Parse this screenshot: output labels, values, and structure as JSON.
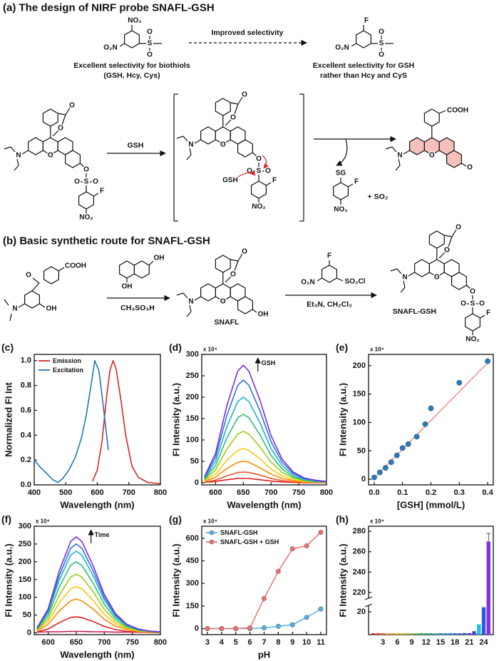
{
  "scheme_a": {
    "title": "(a) The design of NIRF probe SNAFL-GSH",
    "arrow_label": "Improved selectivity",
    "left_caption": [
      "Excellent selectivity for biothiols",
      "(GSH, Hcy, Cys)"
    ],
    "right_caption": [
      "Excellent selectivity for GSH",
      "rather than Hcy and CyS"
    ],
    "reagent": "GSH",
    "nucleophile": "GSH",
    "byproduct": "+ SO₂",
    "atoms": [
      "NO₂",
      "O₂N",
      "S",
      "O",
      "O",
      "F",
      "O₂N",
      "S",
      "O",
      "O",
      "O",
      "O",
      "N",
      "O",
      "O",
      "S",
      "O",
      "O",
      "F",
      "NO₂",
      "O",
      "O",
      "N",
      "O",
      "O",
      "S",
      "O",
      "O",
      "F",
      "NO₂",
      "SG",
      "F",
      "NO₂",
      "COOH",
      "N",
      "O",
      "O"
    ]
  },
  "scheme_b": {
    "title": "(b) Basic synthetic route for SNAFL-GSH",
    "reagents": [
      "CH₃SO₃H",
      "Et₃N, CH₂Cl₂"
    ],
    "names": [
      "SNAFL",
      "SNAFL-GSH"
    ],
    "atoms": [
      "COOH",
      "O",
      "N",
      "OH",
      "OH",
      "OH",
      "O",
      "O",
      "N",
      "O",
      "OH",
      "O₂N",
      "F",
      "SO₂Cl",
      "O",
      "O",
      "N",
      "O",
      "O",
      "S",
      "O",
      "O",
      "F",
      "NO₂"
    ]
  },
  "chart_data": [
    {
      "type": "line",
      "title": "(c)",
      "xlabel": "Wavelength (nm)",
      "ylabel": "Normalized FI Int",
      "xlim": [
        400,
        800
      ],
      "xticks": [
        400,
        500,
        600,
        700,
        800
      ],
      "ylim": [
        0,
        1.05
      ],
      "yticks": [
        {
          "value": 0,
          "label": "0.0"
        },
        0.2,
        0.4,
        0.6,
        0.8,
        {
          "value": 1,
          "label": "1.0"
        }
      ],
      "legend": "upper left",
      "series": [
        {
          "name": "Emission",
          "color": "#d62728",
          "x": [
            585,
            600,
            615,
            630,
            640,
            650,
            660,
            675,
            690,
            710,
            730,
            760,
            800
          ],
          "values": [
            0.03,
            0.12,
            0.35,
            0.72,
            0.92,
            1.0,
            0.93,
            0.68,
            0.4,
            0.15,
            0.06,
            0.02,
            0.01
          ]
        },
        {
          "name": "Excitation",
          "color": "#1f77b4",
          "x": [
            400,
            420,
            440,
            460,
            475,
            490,
            510,
            530,
            550,
            565,
            580,
            592,
            605,
            615,
            625,
            635
          ],
          "values": [
            0.2,
            0.14,
            0.09,
            0.04,
            0.02,
            0.05,
            0.12,
            0.22,
            0.38,
            0.56,
            0.8,
            1.0,
            0.92,
            0.72,
            0.5,
            0.28
          ]
        }
      ]
    },
    {
      "type": "line",
      "title": "(d)",
      "y_multiplier": "x 10⁴",
      "annotation": "GSH",
      "xlabel": "Wavelength (nm)",
      "ylabel": "FI Intensity (a.u.)",
      "xlim": [
        575,
        800
      ],
      "xticks": [
        600,
        650,
        700,
        750,
        800
      ],
      "ylim": [
        -5,
        300
      ],
      "yticks": [
        0,
        50,
        100,
        150,
        200,
        250,
        300
      ],
      "x": [
        580,
        600,
        620,
        640,
        650,
        660,
        680,
        700,
        720,
        740,
        760,
        780,
        800
      ],
      "series": [
        {
          "color": "#e41a1c",
          "values": [
            1,
            3,
            7,
            10,
            10,
            10,
            7,
            4,
            2,
            1,
            0,
            0,
            0
          ]
        },
        {
          "color": "#f4511e",
          "values": [
            1,
            6,
            16,
            24,
            25,
            24,
            18,
            10,
            5,
            2,
            1,
            1,
            0
          ]
        },
        {
          "color": "#fb8c00",
          "values": [
            3,
            13,
            33,
            48,
            50,
            48,
            35,
            20,
            10,
            5,
            2,
            1,
            1
          ]
        },
        {
          "color": "#f9c80e",
          "values": [
            4,
            20,
            52,
            76,
            80,
            76,
            56,
            32,
            16,
            7,
            3,
            2,
            1
          ]
        },
        {
          "color": "#9ccc15",
          "values": [
            6,
            30,
            78,
            114,
            120,
            114,
            84,
            48,
            24,
            11,
            5,
            2,
            1
          ]
        },
        {
          "color": "#2fbf71",
          "values": [
            8,
            40,
            104,
            152,
            160,
            152,
            112,
            64,
            32,
            14,
            6,
            3,
            2
          ]
        },
        {
          "color": "#19b5c9",
          "values": [
            10,
            50,
            130,
            190,
            200,
            190,
            140,
            80,
            40,
            18,
            8,
            4,
            2
          ]
        },
        {
          "color": "#2f6fe4",
          "values": [
            12,
            60,
            156,
            228,
            240,
            228,
            168,
            96,
            48,
            22,
            10,
            5,
            2
          ]
        },
        {
          "color": "#7b2ee0",
          "values": [
            14,
            69,
            179,
            261,
            275,
            261,
            193,
            110,
            55,
            25,
            11,
            6,
            3
          ]
        }
      ]
    },
    {
      "type": "scatter",
      "title": "(e)",
      "y_multiplier": "x 10⁴",
      "xlabel": "[GSH] (mmol/L)",
      "ylabel": "FI Intensity (a.u.)",
      "xlim": [
        -0.02,
        0.42
      ],
      "xticks": [
        {
          "value": 0,
          "label": "0.0"
        },
        0.1,
        0.2,
        0.3,
        0.4
      ],
      "ylim": [
        -10,
        220
      ],
      "yticks": [
        0,
        50,
        100,
        150,
        200
      ],
      "color": "#2b7bba",
      "x": [
        0,
        0.02,
        0.04,
        0.06,
        0.08,
        0.1,
        0.12,
        0.15,
        0.18,
        0.2,
        0.3,
        0.4
      ],
      "values": [
        3,
        12,
        20,
        30,
        42,
        55,
        62,
        75,
        97,
        125,
        170,
        208
      ],
      "fit": {
        "color": "#f08080",
        "x": [
          0,
          0.4
        ],
        "values": [
          2,
          205
        ]
      }
    },
    {
      "type": "line",
      "title": "(f)",
      "y_multiplier": "x 10⁴",
      "annotation": "Time",
      "xlabel": "Wavelength (nm)",
      "ylabel": "FI Intensity (a.u.)",
      "xlim": [
        575,
        800
      ],
      "xticks": [
        600,
        650,
        700,
        750,
        800
      ],
      "ylim": [
        -5,
        300
      ],
      "yticks": [
        0,
        50,
        100,
        150,
        200,
        250,
        300
      ],
      "x": [
        580,
        600,
        620,
        640,
        650,
        660,
        680,
        700,
        720,
        740,
        760,
        780,
        800
      ],
      "series": [
        {
          "color": "#c2185b",
          "values": [
            2,
            3,
            3,
            4,
            4,
            4,
            3,
            3,
            2,
            2,
            2,
            2,
            2
          ]
        },
        {
          "color": "#e41a1c",
          "values": [
            2,
            11,
            29,
            43,
            45,
            43,
            32,
            18,
            9,
            4,
            2,
            1,
            0
          ]
        },
        {
          "color": "#fb8c00",
          "values": [
            5,
            24,
            62,
            90,
            95,
            90,
            67,
            38,
            19,
            9,
            4,
            2,
            1
          ]
        },
        {
          "color": "#f9c80e",
          "values": [
            7,
            33,
            85,
            124,
            130,
            124,
            91,
            52,
            26,
            12,
            5,
            3,
            1
          ]
        },
        {
          "color": "#9ccc15",
          "values": [
            8,
            41,
            107,
            157,
            165,
            157,
            116,
            66,
            33,
            15,
            7,
            3,
            2
          ]
        },
        {
          "color": "#2fbf71",
          "values": [
            10,
            50,
            130,
            190,
            200,
            190,
            140,
            80,
            40,
            18,
            8,
            4,
            2
          ]
        },
        {
          "color": "#19b5c9",
          "values": [
            12,
            58,
            150,
            219,
            230,
            219,
            161,
            92,
            46,
            21,
            9,
            5,
            2
          ]
        },
        {
          "color": "#2f6fe4",
          "values": [
            13,
            63,
            163,
            238,
            250,
            238,
            175,
            100,
            50,
            23,
            10,
            5,
            3
          ]
        },
        {
          "color": "#7b2ee0",
          "values": [
            14,
            68,
            176,
            257,
            270,
            257,
            189,
            108,
            54,
            24,
            11,
            5,
            3
          ]
        }
      ]
    },
    {
      "type": "line",
      "markers": true,
      "title": "(g)",
      "y_multiplier": "x 10⁴",
      "xlabel": "pH",
      "ylabel": "FI Intensity (a.u.)",
      "xlim": [
        2.6,
        11.4
      ],
      "xticks": [
        3,
        4,
        5,
        6,
        7,
        8,
        9,
        10,
        11
      ],
      "ylim": [
        -40,
        680
      ],
      "yticks": [
        0,
        150,
        300,
        450,
        600
      ],
      "legend": "upper left",
      "x": [
        3,
        4,
        5,
        6,
        7,
        8,
        9,
        10,
        11
      ],
      "series": [
        {
          "name": "SNAFL-GSH",
          "color": "#4fb3e8",
          "values": [
            0,
            0,
            0,
            0,
            5,
            15,
            25,
            75,
            130
          ]
        },
        {
          "name": "SNAFL-GSH + GSH",
          "color": "#f07070",
          "values": [
            0,
            0,
            0,
            5,
            200,
            380,
            530,
            550,
            640
          ]
        }
      ]
    },
    {
      "type": "bar",
      "title": "(h)",
      "y_multiplier": "x 10⁴",
      "ylabel": "FI Intensity (a.u.)",
      "ylim": [
        0,
        285
      ],
      "axis_break": [
        25,
        215
      ],
      "yticks": [
        20,
        220,
        240,
        260,
        280
      ],
      "categories": [
        null,
        null,
        3,
        null,
        null,
        6,
        null,
        null,
        9,
        null,
        null,
        12,
        null,
        null,
        15,
        null,
        null,
        18,
        null,
        null,
        21,
        null,
        null,
        24,
        null
      ],
      "values": [
        1.2,
        1.3,
        1.2,
        1.1,
        1.3,
        1.2,
        1.2,
        1.3,
        1.1,
        1.2,
        1.3,
        1.2,
        1.2,
        1.1,
        1.3,
        1.2,
        1.2,
        1.3,
        1.2,
        1.4,
        1.3,
        3,
        9,
        24,
        270
      ],
      "errors": [
        null,
        null,
        null,
        null,
        null,
        null,
        null,
        null,
        null,
        null,
        null,
        null,
        null,
        null,
        null,
        null,
        null,
        null,
        null,
        null,
        null,
        null,
        null,
        null,
        8
      ],
      "colors": [
        "#e4262c",
        "#e8452a",
        "#ec6a25",
        "#f08a20",
        "#f3a61c",
        "#e8be19",
        "#cbc81a",
        "#a5c61f",
        "#7cc229",
        "#52bd37",
        "#2fb64c",
        "#1db167",
        "#17ab84",
        "#17a4a0",
        "#1b9cba",
        "#2091cf",
        "#2684dd",
        "#2d73e5",
        "#3762e8",
        "#3f52e6",
        "#4a44e2",
        "#5a39dc",
        "#1fc0e0",
        "#2b5be0",
        "#8a2be2"
      ]
    }
  ]
}
